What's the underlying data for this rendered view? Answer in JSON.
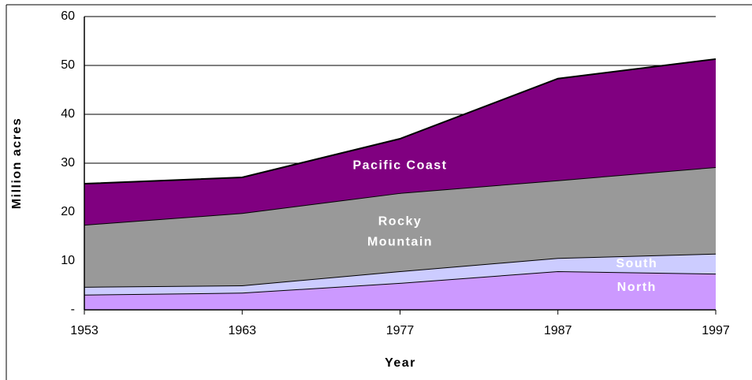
{
  "chart_data": {
    "type": "stacked_area",
    "xlabel": "Year",
    "ylabel": "Million  acres",
    "categories": [
      "1953",
      "1963",
      "1977",
      "1987",
      "1997"
    ],
    "series": [
      {
        "name": "North",
        "color": "#cc99ff",
        "values": [
          3.1,
          3.5,
          5.5,
          7.9,
          7.4
        ]
      },
      {
        "name": "South",
        "color": "#ccccff",
        "values": [
          1.6,
          1.5,
          2.4,
          2.7,
          4.1
        ]
      },
      {
        "name": "Rocky Mountain",
        "color": "#999999",
        "values": [
          12.7,
          14.8,
          16.0,
          15.9,
          17.7
        ]
      },
      {
        "name": "Pacific  Coast",
        "color": "#800080",
        "values": [
          8.4,
          7.3,
          11.1,
          20.8,
          22.1
        ]
      }
    ],
    "ylim": [
      0,
      60
    ],
    "yticks": [
      {
        "value": 0,
        "label": "-"
      },
      10,
      20,
      30,
      40,
      50,
      60
    ],
    "grid": true
  }
}
